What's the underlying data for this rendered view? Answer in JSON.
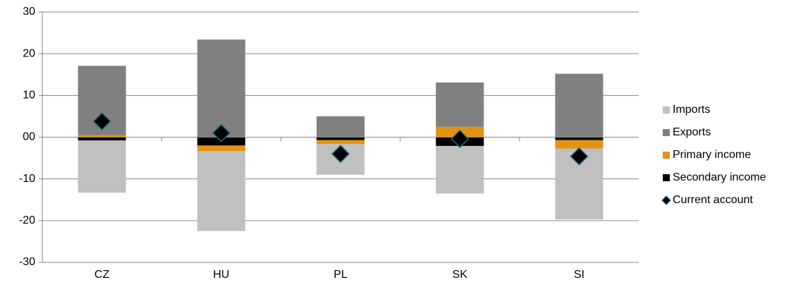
{
  "chart_data": {
    "type": "stacked-bar-marker",
    "categories": [
      "CZ",
      "HU",
      "PL",
      "SK",
      "SI"
    ],
    "series": [
      {
        "name": "Imports",
        "color": "#c0c0c0",
        "values": [
          -12.5,
          -19.2,
          -7.4,
          -11.4,
          -17.0
        ]
      },
      {
        "name": "Exports",
        "color": "#808080",
        "values": [
          16.6,
          23.4,
          5.0,
          10.6,
          15.2
        ]
      },
      {
        "name": "Primary income",
        "color": "#e3930f",
        "values": [
          0.5,
          -1.3,
          -0.9,
          2.5,
          -2.0
        ]
      },
      {
        "name": "Secondary income",
        "color": "#000000",
        "values": [
          -0.8,
          -2.0,
          -0.7,
          -2.1,
          -0.7
        ]
      },
      {
        "name": "Current account",
        "color": "#000000",
        "marker": "diamond",
        "values": [
          3.8,
          1.0,
          -4.0,
          -0.4,
          -4.6
        ]
      }
    ],
    "ylim": [
      -30,
      30
    ],
    "yticks": [
      30,
      20,
      10,
      {
        "value": 0,
        "label": "00"
      },
      -10,
      -20,
      -30
    ],
    "grid": true,
    "legend": "right"
  }
}
